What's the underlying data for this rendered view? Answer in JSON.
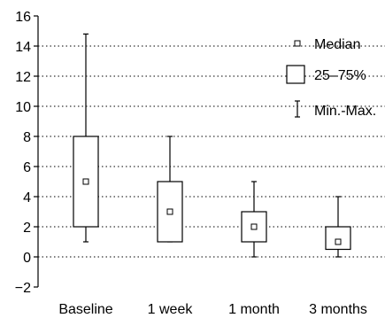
{
  "chart_data": {
    "type": "box",
    "categories": [
      "Baseline",
      "1 week",
      "1 month",
      "3 months"
    ],
    "boxes": [
      {
        "category": "Baseline",
        "min": 1,
        "q1": 2,
        "median": 5,
        "q3": 8,
        "max": 14.8
      },
      {
        "category": "1 week",
        "min": 1,
        "q1": 1,
        "median": 3,
        "q3": 5,
        "max": 8
      },
      {
        "category": "1 month",
        "min": 0,
        "q1": 1,
        "median": 2,
        "q3": 3,
        "max": 5
      },
      {
        "category": "3 months",
        "min": 0,
        "q1": 0.5,
        "median": 1,
        "q3": 2,
        "max": 4
      }
    ],
    "ylim": [
      -2,
      16
    ],
    "yticks": [
      -2,
      0,
      2,
      4,
      6,
      8,
      10,
      12,
      14,
      16
    ],
    "ytick_labels": [
      "−2",
      "0",
      "2",
      "4",
      "6",
      "8",
      "10",
      "12",
      "14",
      "16"
    ],
    "gridlines": [
      0,
      2,
      4,
      6,
      8,
      10,
      12,
      14
    ],
    "grid": true,
    "legend": {
      "placement": "top-right",
      "median_label": "Median",
      "box_label": "25–75%",
      "whisker_label": "Min.-Max."
    }
  }
}
